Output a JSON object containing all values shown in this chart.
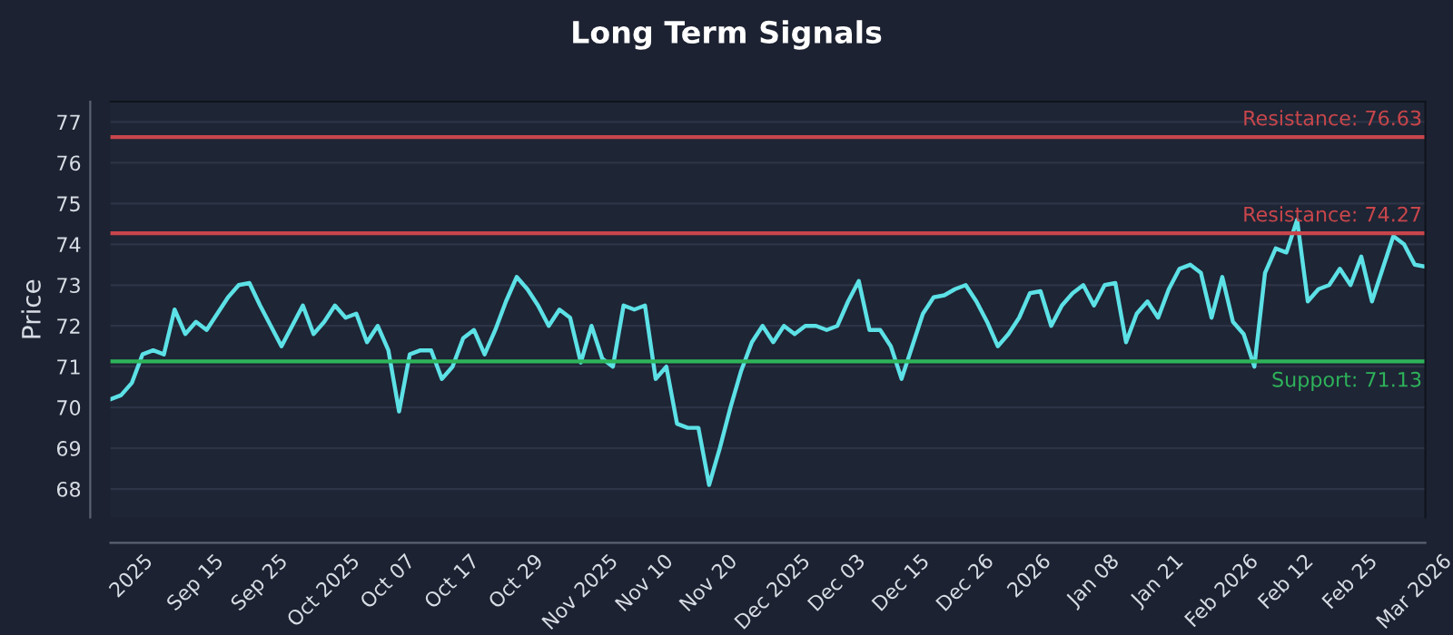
{
  "chart_data": {
    "type": "line",
    "title": "Long Term Signals",
    "ylabel": "Price",
    "categories": [
      null,
      null,
      "2025",
      null,
      null,
      null,
      null,
      null,
      "Sep 15",
      null,
      null,
      null,
      null,
      null,
      "Sep 25",
      null,
      null,
      null,
      null,
      null,
      "Oct 2025",
      null,
      null,
      null,
      null,
      null,
      "Oct 07",
      null,
      null,
      null,
      null,
      null,
      "Oct 17",
      null,
      null,
      null,
      null,
      null,
      "Oct 29",
      null,
      null,
      null,
      null,
      null,
      "Nov 2025",
      null,
      null,
      null,
      null,
      null,
      "Nov 10",
      null,
      null,
      null,
      null,
      null,
      "Nov 20",
      null,
      null,
      null,
      null,
      null,
      "Dec 2025",
      null,
      null,
      null,
      null,
      null,
      "Dec 03",
      null,
      null,
      null,
      null,
      null,
      "Dec 15",
      null,
      null,
      null,
      null,
      null,
      "Dec 26",
      null,
      null,
      null,
      null,
      null,
      "2026",
      null,
      null,
      null,
      null,
      null,
      "Jan 08",
      null,
      null,
      null,
      null,
      null,
      "Jan 21",
      null,
      null,
      null,
      null,
      null,
      "Feb 2026",
      null,
      null,
      null,
      null,
      null,
      "Feb 12",
      null,
      null,
      null,
      null,
      null,
      "Feb 25",
      null,
      null,
      null,
      null,
      null,
      "Mar 2026",
      null
    ],
    "series": [
      {
        "color": "#5ce1e6",
        "values": [
          70.2,
          70.3,
          70.6,
          71.3,
          71.4,
          71.3,
          72.4,
          71.8,
          72.1,
          71.9,
          72.3,
          72.7,
          73.0,
          73.05,
          72.5,
          72.0,
          71.5,
          72.0,
          72.5,
          71.8,
          72.1,
          72.5,
          72.2,
          72.3,
          71.6,
          72.0,
          71.4,
          69.9,
          71.3,
          71.4,
          71.4,
          70.7,
          71.0,
          71.7,
          71.9,
          71.3,
          71.9,
          72.6,
          73.2,
          72.9,
          72.5,
          72.0,
          72.4,
          72.2,
          71.1,
          72.0,
          71.2,
          71.0,
          72.5,
          72.4,
          72.5,
          70.7,
          71.0,
          69.6,
          69.5,
          69.5,
          68.1,
          69.0,
          70.0,
          70.9,
          71.6,
          72.0,
          71.6,
          72.0,
          71.8,
          72.0,
          72.0,
          71.9,
          72.0,
          72.6,
          73.1,
          71.9,
          71.9,
          71.5,
          70.7,
          71.5,
          72.3,
          72.7,
          72.75,
          72.9,
          73.0,
          72.6,
          72.1,
          71.5,
          71.8,
          72.2,
          72.8,
          72.85,
          72.0,
          72.5,
          72.8,
          73.0,
          72.5,
          73.0,
          73.05,
          71.6,
          72.3,
          72.6,
          72.2,
          72.9,
          73.4,
          73.5,
          73.3,
          72.2,
          73.2,
          72.1,
          71.8,
          71.0,
          73.3,
          73.9,
          73.8,
          74.6,
          72.6,
          72.9,
          73.0,
          73.4,
          73.0,
          73.7,
          72.6,
          73.4,
          74.2,
          74.0,
          73.5,
          73.45
        ]
      }
    ],
    "ylim": [
      67.3,
      77.5
    ],
    "yticks": [
      68,
      69,
      70,
      71,
      72,
      73,
      74,
      75,
      76,
      77
    ],
    "grid": "y",
    "marker": "none",
    "line_style": "solid",
    "ref_lines": [
      {
        "axis": "y",
        "value": 76.63,
        "label": "Resistance: 76.63",
        "color": "#c8464b"
      },
      {
        "axis": "y",
        "value": 74.27,
        "label": "Resistance: 74.27",
        "color": "#c8464b"
      },
      {
        "axis": "y",
        "value": 71.13,
        "label": "Support: 71.13",
        "color": "#2eb35a"
      }
    ]
  }
}
